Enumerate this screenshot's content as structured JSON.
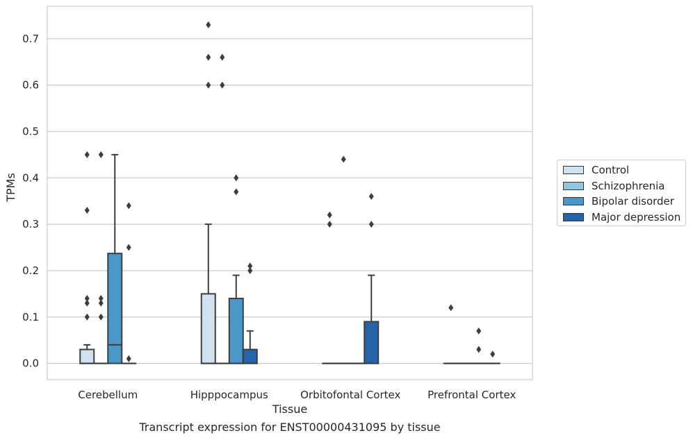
{
  "caption": "Transcript expression for ENST00000431095 by tissue",
  "chart_data": {
    "type": "boxplot",
    "title": "",
    "xlabel": "Tissue",
    "ylabel": "TPMs",
    "ylim": [
      -0.035,
      0.77
    ],
    "yticks": [
      "0.0",
      "0.1",
      "0.2",
      "0.3",
      "0.4",
      "0.5",
      "0.6",
      "0.7"
    ],
    "ytick_values": [
      0,
      0.1,
      0.2,
      0.3,
      0.4,
      0.5,
      0.6,
      0.7
    ],
    "grid": true,
    "legend_position": "right",
    "categories": [
      "Cerebellum",
      "Hipppocampus",
      "Orbitofontal Cortex",
      "Prefrontal Cortex"
    ],
    "series": [
      {
        "name": "Control",
        "color": "#d0e1f2",
        "boxes": [
          {
            "q1": 0,
            "median": 0,
            "q3": 0.03,
            "whisker_low": 0,
            "whisker_high": 0.04,
            "outliers": [
              0.1,
              0.13,
              0.14,
              0.33,
              0.45
            ]
          },
          {
            "q1": 0,
            "median": 0,
            "q3": 0.15,
            "whisker_low": 0,
            "whisker_high": 0.3,
            "outliers": [
              0.6,
              0.66,
              0.73
            ]
          },
          {
            "q1": 0,
            "median": 0,
            "q3": 0,
            "whisker_low": 0,
            "whisker_high": 0,
            "outliers": [
              0.3,
              0.32
            ]
          },
          {
            "q1": 0,
            "median": 0,
            "q3": 0,
            "whisker_low": 0,
            "whisker_high": 0,
            "outliers": [
              0.12
            ]
          }
        ]
      },
      {
        "name": "Schizophrenia",
        "color": "#94c4df",
        "boxes": [
          {
            "q1": 0,
            "median": 0,
            "q3": 0,
            "whisker_low": 0,
            "whisker_high": 0,
            "outliers": [
              0.1,
              0.13,
              0.14,
              0.45
            ]
          },
          {
            "q1": 0,
            "median": 0,
            "q3": 0,
            "whisker_low": 0,
            "whisker_high": 0,
            "outliers": [
              0.6,
              0.66
            ]
          },
          {
            "q1": 0,
            "median": 0,
            "q3": 0,
            "whisker_low": 0,
            "whisker_high": 0,
            "outliers": [
              0.44
            ]
          },
          {
            "q1": 0,
            "median": 0,
            "q3": 0,
            "whisker_low": 0,
            "whisker_high": 0,
            "outliers": []
          }
        ]
      },
      {
        "name": "Bipolar disorder",
        "color": "#4a98c9",
        "boxes": [
          {
            "q1": 0,
            "median": 0.04,
            "q3": 0.237,
            "whisker_low": 0,
            "whisker_high": 0.45,
            "outliers": []
          },
          {
            "q1": 0,
            "median": 0,
            "q3": 0.14,
            "whisker_low": 0,
            "whisker_high": 0.19,
            "outliers": [
              0.37,
              0.4
            ]
          },
          {
            "q1": 0,
            "median": 0,
            "q3": 0,
            "whisker_low": 0,
            "whisker_high": 0,
            "outliers": []
          },
          {
            "q1": 0,
            "median": 0,
            "q3": 0,
            "whisker_low": 0,
            "whisker_high": 0,
            "outliers": [
              0.03,
              0.07
            ]
          }
        ]
      },
      {
        "name": "Major depression",
        "color": "#2464ab",
        "boxes": [
          {
            "q1": 0,
            "median": 0,
            "q3": 0,
            "whisker_low": 0,
            "whisker_high": 0,
            "outliers": [
              0.01,
              0.25,
              0.34
            ]
          },
          {
            "q1": 0,
            "median": 0,
            "q3": 0.03,
            "whisker_low": 0,
            "whisker_high": 0.07,
            "outliers": [
              0.2,
              0.21
            ]
          },
          {
            "q1": 0,
            "median": 0,
            "q3": 0.09,
            "whisker_low": 0,
            "whisker_high": 0.19,
            "outliers": [
              0.3,
              0.36
            ]
          },
          {
            "q1": 0,
            "median": 0,
            "q3": 0,
            "whisker_low": 0,
            "whisker_high": 0,
            "outliers": [
              0.02
            ]
          }
        ]
      }
    ]
  }
}
